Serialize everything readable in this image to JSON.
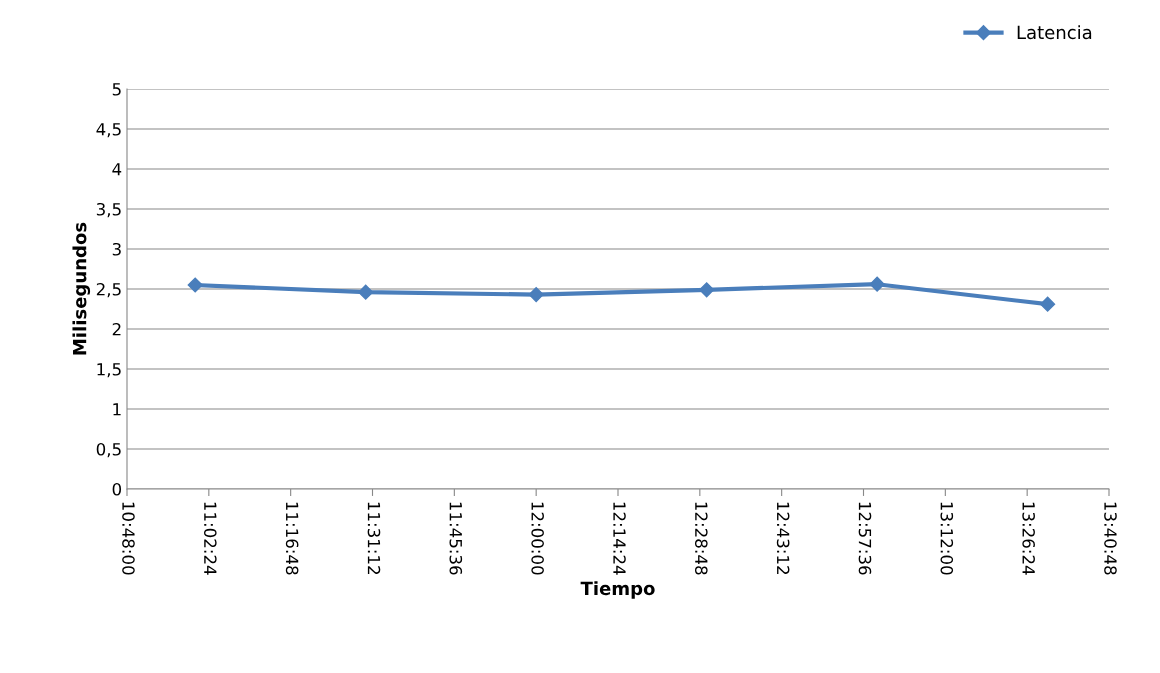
{
  "chart_data": {
    "type": "line",
    "xlabel": "Tiempo",
    "ylabel": "Milisegundos",
    "x": [
      11.0,
      11.5,
      12.0,
      12.5,
      13.0,
      13.5
    ],
    "series": [
      {
        "name": "Latencia",
        "color": "#4a7ebb",
        "values": [
          2.55,
          2.46,
          2.43,
          2.49,
          2.56,
          2.31
        ]
      }
    ],
    "xlim": [
      10.8,
      13.68
    ],
    "xticks": [
      {
        "value": 10.8,
        "label": "10:48:00"
      },
      {
        "value": 11.04,
        "label": "11:02:24"
      },
      {
        "value": 11.28,
        "label": "11:16:48"
      },
      {
        "value": 11.52,
        "label": "11:31:12"
      },
      {
        "value": 11.76,
        "label": "11:45:36"
      },
      {
        "value": 12.0,
        "label": "12:00:00"
      },
      {
        "value": 12.24,
        "label": "12:14:24"
      },
      {
        "value": 12.48,
        "label": "12:28:48"
      },
      {
        "value": 12.72,
        "label": "12:43:12"
      },
      {
        "value": 12.96,
        "label": "12:57:36"
      },
      {
        "value": 13.2,
        "label": "13:12:00"
      },
      {
        "value": 13.44,
        "label": "13:26:24"
      },
      {
        "value": 13.68,
        "label": "13:40:48"
      }
    ],
    "ylim": [
      0,
      5
    ],
    "yticks": [
      0,
      {
        "value": 0.5,
        "label": "0,5"
      },
      1,
      {
        "value": 1.5,
        "label": "1,5"
      },
      2,
      {
        "value": 2.5,
        "label": "2,5"
      },
      3,
      {
        "value": 3.5,
        "label": "3,5"
      },
      4,
      {
        "value": 4.5,
        "label": "4,5"
      },
      5
    ],
    "grid": "y",
    "legend": "top right",
    "marker": "diamond",
    "line_style": "solid"
  }
}
